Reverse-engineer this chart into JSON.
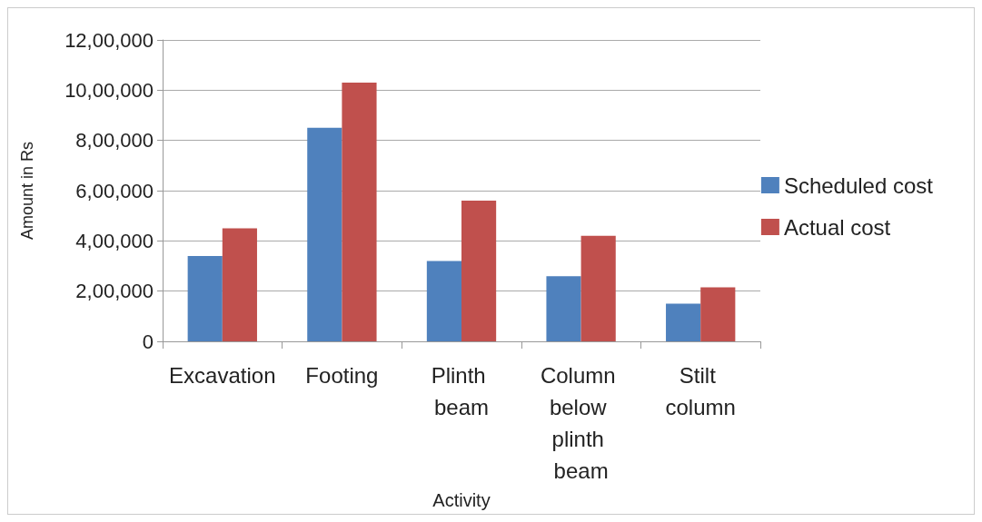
{
  "chart_data": {
    "type": "bar",
    "xlabel": "Activity",
    "ylabel": "Amount in Rs",
    "categories": [
      "Excavation",
      "Footing",
      "Plinth beam",
      "Column below plinth beam",
      "Stilt column"
    ],
    "series": [
      {
        "name": "Scheduled cost",
        "color": "#4f81bd",
        "values": [
          340000,
          850000,
          320000,
          260000,
          150000
        ]
      },
      {
        "name": "Actual cost",
        "color": "#c0504d",
        "values": [
          450000,
          1030000,
          560000,
          420000,
          215000
        ]
      }
    ],
    "ylim": [
      0,
      1200000
    ],
    "yticks": [
      0,
      {
        "value": 200000,
        "label": "2,00,000"
      },
      {
        "value": 400000,
        "label": "4,00,000"
      },
      {
        "value": 600000,
        "label": "6,00,000"
      },
      {
        "value": 800000,
        "label": "8,00,000"
      },
      {
        "value": 1000000,
        "label": "10,00,000"
      },
      {
        "value": 1200000,
        "label": "12,00,000"
      }
    ],
    "grid": "y",
    "legend": "right"
  }
}
